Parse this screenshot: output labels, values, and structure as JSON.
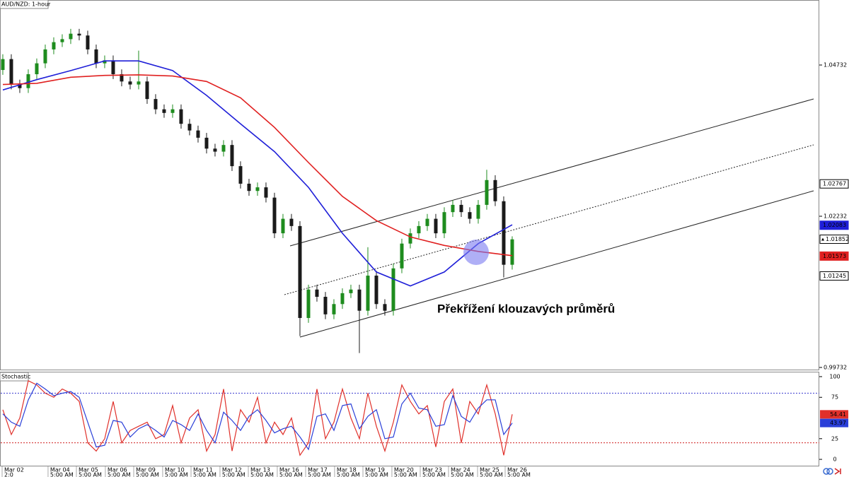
{
  "chart_data": [
    {
      "type": "candlestick",
      "title": "AUD/NZD: 1-hour",
      "annotation": "Překřížení klouzavých průměrů",
      "xlim": [
        -0.33,
        96.17
      ],
      "ylim": [
        0.99685,
        1.05807
      ],
      "yticks": [
        1.04732,
        1.02232,
        0.99732
      ],
      "up_color": "#1e8c1e",
      "down_color": "#1a1a1a",
      "open": [
        1.0465,
        1.0483,
        1.0441,
        1.0435,
        1.0458,
        1.0476,
        1.0499,
        1.0511,
        1.0516,
        1.0525,
        1.0522,
        1.0499,
        1.0476,
        1.0481,
        1.0458,
        1.0446,
        1.0441,
        1.0446,
        1.0417,
        1.04,
        1.0394,
        1.04,
        1.0376,
        1.0365,
        1.0353,
        1.0335,
        1.033,
        1.0341,
        1.0306,
        1.0277,
        1.0265,
        1.0271,
        1.0254,
        1.0195,
        1.0219,
        1.0207,
        1.0055,
        1.0102,
        1.009,
        1.0061,
        1.0078,
        1.0096,
        1.0102,
        1.0067,
        1.0125,
        1.0078,
        1.0067,
        1.0137,
        1.0178,
        1.0195,
        1.0207,
        1.0219,
        1.0195,
        1.023,
        1.0242,
        1.023,
        1.0219,
        1.0242,
        1.0283,
        1.0248,
        1.0143
      ],
      "high": [
        1.0491,
        1.0491,
        1.0449,
        1.0466,
        1.0484,
        1.0507,
        1.0519,
        1.0524,
        1.0533,
        1.0533,
        1.053,
        1.0507,
        1.0489,
        1.0489,
        1.0466,
        1.0454,
        1.0497,
        1.0454,
        1.0425,
        1.0408,
        1.0408,
        1.0408,
        1.0384,
        1.0373,
        1.0361,
        1.0343,
        1.0349,
        1.0349,
        1.0314,
        1.0285,
        1.0279,
        1.0279,
        1.0262,
        1.0227,
        1.0227,
        1.0215,
        1.011,
        1.011,
        1.0098,
        1.0086,
        1.0104,
        1.011,
        1.011,
        1.0172,
        1.0133,
        1.0086,
        1.0145,
        1.0186,
        1.0203,
        1.0215,
        1.0227,
        1.0227,
        1.0238,
        1.025,
        1.025,
        1.0238,
        1.025,
        1.03,
        1.0291,
        1.0256,
        1.019
      ],
      "low": [
        1.0457,
        1.0433,
        1.0427,
        1.0427,
        1.045,
        1.0468,
        1.0491,
        1.0503,
        1.0508,
        1.0514,
        1.0491,
        1.0468,
        1.0468,
        1.045,
        1.0438,
        1.0433,
        1.0433,
        1.0409,
        1.0392,
        1.0386,
        1.0386,
        1.0368,
        1.0357,
        1.0345,
        1.0327,
        1.0322,
        1.0322,
        1.0298,
        1.0269,
        1.0257,
        1.0257,
        1.0246,
        1.0187,
        1.0187,
        1.0199,
        1.0025,
        1.0047,
        1.0082,
        1.0053,
        1.0053,
        1.007,
        1.0088,
        0.9997,
        1.0059,
        1.007,
        1.0059,
        1.0059,
        1.0129,
        1.017,
        1.0187,
        1.0199,
        1.0187,
        1.0187,
        1.0222,
        1.0222,
        1.0211,
        1.0211,
        1.0234,
        1.024,
        1.0122,
        1.0135
      ],
      "close": [
        1.0483,
        1.0441,
        1.0435,
        1.0458,
        1.0476,
        1.0499,
        1.0511,
        1.0516,
        1.0525,
        1.0522,
        1.0499,
        1.0476,
        1.0481,
        1.0458,
        1.0446,
        1.0441,
        1.0446,
        1.0417,
        1.04,
        1.0394,
        1.04,
        1.0376,
        1.0365,
        1.0353,
        1.0335,
        1.033,
        1.0341,
        1.0306,
        1.0277,
        1.0265,
        1.0271,
        1.0254,
        1.0195,
        1.0219,
        1.0207,
        1.0055,
        1.0102,
        1.009,
        1.0061,
        1.0078,
        1.0096,
        1.0102,
        1.0067,
        1.0125,
        1.0078,
        1.0067,
        1.0137,
        1.0178,
        1.0195,
        1.0207,
        1.0219,
        1.0195,
        1.023,
        1.0242,
        1.023,
        1.0219,
        1.0242,
        1.0283,
        1.0248,
        1.0143,
        1.0185
      ],
      "lines": [
        {
          "color": "#1f1fd8",
          "x": [
            0,
            4,
            8,
            12,
            16,
            20,
            24,
            28,
            32,
            36,
            40,
            44,
            48,
            52,
            56,
            60
          ],
          "values": [
            1.0432,
            1.0449,
            1.0464,
            1.048,
            1.048,
            1.0464,
            1.0423,
            1.0376,
            1.033,
            1.0271,
            1.0195,
            1.0131,
            1.0108,
            1.0131,
            1.0178,
            1.0209
          ]
        },
        {
          "color": "#e02020",
          "x": [
            0,
            4,
            8,
            12,
            16,
            20,
            24,
            28,
            32,
            36,
            40,
            44,
            48,
            52,
            56,
            60
          ],
          "values": [
            1.0441,
            1.0443,
            1.0453,
            1.0456,
            1.0457,
            1.0455,
            1.0446,
            1.0419,
            1.037,
            1.0312,
            1.0256,
            1.0216,
            1.0189,
            1.0175,
            1.0165,
            1.0158
          ]
        }
      ],
      "price_markers": [
        {
          "value": 1.02767,
          "fill": "#ffffff",
          "text_color": "#000000"
        },
        {
          "value": 1.02083,
          "fill": "#1f1fd8",
          "text_color": "#ffffff"
        },
        {
          "value": 1.01852,
          "fill": "#ffffff",
          "text_color": "#000000",
          "arrow": true
        },
        {
          "value": 1.01573,
          "fill": "#e02020",
          "text_color": "#ffffff"
        },
        {
          "value": 1.01245,
          "fill": "#ffffff",
          "text_color": "#000000"
        }
      ]
    },
    {
      "type": "line",
      "title": "Stochastic",
      "xlim": [
        -0.33,
        96.17
      ],
      "ylim": [
        -8.5,
        105.1
      ],
      "yticks": [
        0,
        25,
        75,
        100
      ],
      "levels": [
        {
          "value": 80,
          "color": "#3a3ad0"
        },
        {
          "value": 20,
          "color": "#d02020"
        }
      ],
      "last_value_labels": true,
      "series": [
        {
          "color": "#e0302a",
          "values": [
            60,
            30,
            50,
            95,
            90,
            80,
            75,
            85,
            80,
            70,
            20,
            10,
            25,
            70,
            20,
            35,
            40,
            45,
            25,
            30,
            65,
            20,
            50,
            60,
            10,
            30,
            85,
            10,
            60,
            45,
            75,
            20,
            45,
            30,
            50,
            5,
            20,
            85,
            25,
            45,
            85,
            50,
            25,
            80,
            40,
            10,
            45,
            90,
            70,
            55,
            65,
            15,
            70,
            85,
            20,
            70,
            55,
            90,
            55,
            5,
            54.41
          ]
        },
        {
          "color": "#2a3fd8",
          "values": [
            55,
            45,
            40,
            72,
            92,
            85,
            77,
            80,
            82,
            75,
            45,
            15,
            17,
            47,
            45,
            27,
            37,
            42,
            35,
            27,
            47,
            42,
            35,
            55,
            35,
            20,
            57,
            47,
            35,
            52,
            60,
            47,
            32,
            37,
            40,
            27,
            12,
            52,
            55,
            35,
            65,
            67,
            37,
            52,
            60,
            25,
            27,
            67,
            80,
            62,
            60,
            40,
            42,
            77,
            52,
            45,
            62,
            72,
            72,
            30,
            43.97
          ]
        }
      ],
      "xticks": [
        {
          "value": -0.08,
          "label": "Mar 02",
          "sublabel": "2:0"
        },
        {
          "value": 5.33,
          "label": "Mar 04",
          "sublabel": "5:00 AM"
        },
        {
          "value": 8.67,
          "label": "Mar 05",
          "sublabel": "5:00 AM"
        },
        {
          "value": 12.08,
          "label": "Mar 06",
          "sublabel": "5:00 AM"
        },
        {
          "value": 15.42,
          "label": "Mar 09",
          "sublabel": "5:00 AM"
        },
        {
          "value": 18.83,
          "label": "Mar 10",
          "sublabel": "5:00 AM"
        },
        {
          "value": 22.17,
          "label": "Mar 11",
          "sublabel": "5:00 AM"
        },
        {
          "value": 25.58,
          "label": "Mar 12",
          "sublabel": "5:00 AM"
        },
        {
          "value": 28.92,
          "label": "Mar 13",
          "sublabel": "5:00 AM"
        },
        {
          "value": 32.33,
          "label": "Mar 16",
          "sublabel": "5:00 AM"
        },
        {
          "value": 35.67,
          "label": "Mar 17",
          "sublabel": "5:00 AM"
        },
        {
          "value": 39.08,
          "label": "Mar 18",
          "sublabel": "5:00 AM"
        },
        {
          "value": 42.42,
          "label": "Mar 19",
          "sublabel": "5:00 AM"
        },
        {
          "value": 45.83,
          "label": "Mar 20",
          "sublabel": "5:00 AM"
        },
        {
          "value": 49.17,
          "label": "Mar 23",
          "sublabel": "5:00 AM"
        },
        {
          "value": 52.5,
          "label": "Mar 24",
          "sublabel": "5:00 AM"
        },
        {
          "value": 55.92,
          "label": "Mar 25",
          "sublabel": "5:00 AM"
        },
        {
          "value": 59.17,
          "label": "Mar 26",
          "sublabel": "5:00 AM"
        }
      ]
    }
  ]
}
